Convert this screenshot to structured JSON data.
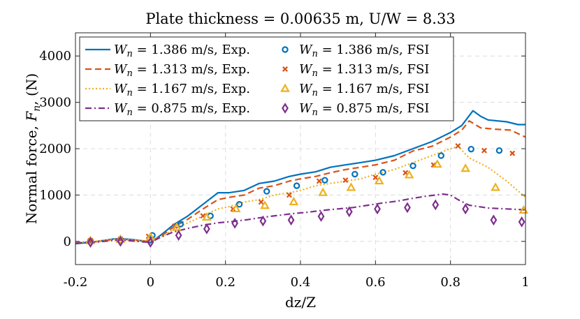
{
  "chart_data": {
    "type": "line",
    "title": "Plate thickness = 0.00635 m, U/W = 8.33",
    "xlabel": "dz/Z",
    "ylabel_prefix": "Normal force, ",
    "ylabel_symbol": "F",
    "ylabel_sub": "n",
    "ylabel_suffix": ", (N)",
    "xlim": [
      -0.2,
      1.0
    ],
    "ylim": [
      -500,
      4500
    ],
    "xticks": [
      -0.2,
      0,
      0.2,
      0.4,
      0.6,
      0.8,
      1
    ],
    "xtick_labels": [
      "-0.2",
      "0",
      "0.2",
      "0.4",
      "0.6",
      "0.8",
      "1"
    ],
    "yticks": [
      0,
      1000,
      2000,
      3000,
      4000
    ],
    "ytick_labels": [
      "0",
      "1000",
      "2000",
      "3000",
      "4000"
    ],
    "grid": true,
    "legend_placement": "top-left",
    "legend_symbol": "W",
    "legend_sub": "n",
    "series": [
      {
        "name_value": " = 1.386 m/s, Exp.",
        "kind": "line",
        "dash": "solid",
        "color": "#0072BD",
        "x": [
          -0.2,
          -0.15,
          -0.1,
          -0.08,
          -0.05,
          -0.02,
          0,
          0.03,
          0.06,
          0.1,
          0.14,
          0.18,
          0.21,
          0.25,
          0.29,
          0.33,
          0.37,
          0.4,
          0.44,
          0.48,
          0.52,
          0.56,
          0.6,
          0.65,
          0.7,
          0.75,
          0.8,
          0.83,
          0.86,
          0.88,
          0.9,
          0.95,
          0.98,
          1.0
        ],
        "y": [
          -50,
          -10,
          50,
          60,
          40,
          10,
          -30,
          150,
          350,
          550,
          800,
          1050,
          1050,
          1100,
          1250,
          1300,
          1400,
          1450,
          1500,
          1600,
          1650,
          1700,
          1750,
          1850,
          2000,
          2150,
          2350,
          2500,
          2820,
          2700,
          2620,
          2580,
          2520,
          2520
        ]
      },
      {
        "name_value": " = 1.313 m/s, Exp.",
        "kind": "line",
        "dash": "dashed",
        "color": "#D95319",
        "x": [
          -0.2,
          -0.15,
          -0.1,
          -0.08,
          -0.05,
          -0.02,
          0,
          0.03,
          0.06,
          0.1,
          0.14,
          0.18,
          0.21,
          0.25,
          0.29,
          0.33,
          0.37,
          0.4,
          0.44,
          0.48,
          0.52,
          0.56,
          0.6,
          0.65,
          0.7,
          0.75,
          0.8,
          0.83,
          0.85,
          0.88,
          0.92,
          0.96,
          1.0
        ],
        "y": [
          -30,
          -10,
          40,
          50,
          30,
          10,
          0,
          120,
          300,
          480,
          700,
          900,
          950,
          1000,
          1150,
          1200,
          1300,
          1350,
          1400,
          1480,
          1550,
          1600,
          1650,
          1750,
          1950,
          2050,
          2250,
          2400,
          2600,
          2450,
          2420,
          2400,
          2250
        ]
      },
      {
        "name_value": " = 1.167 m/s, Exp.",
        "kind": "line",
        "dash": "dotted",
        "color": "#EDB120",
        "x": [
          -0.2,
          -0.15,
          -0.1,
          -0.08,
          -0.05,
          -0.02,
          0,
          0.03,
          0.06,
          0.1,
          0.14,
          0.18,
          0.21,
          0.25,
          0.29,
          0.33,
          0.37,
          0.4,
          0.44,
          0.48,
          0.52,
          0.56,
          0.6,
          0.65,
          0.7,
          0.75,
          0.8,
          0.82,
          0.85,
          0.9,
          0.95,
          1.0
        ],
        "y": [
          -20,
          0,
          40,
          50,
          30,
          10,
          0,
          100,
          250,
          400,
          550,
          700,
          750,
          850,
          900,
          1000,
          1050,
          1100,
          1200,
          1250,
          1300,
          1350,
          1450,
          1550,
          1700,
          1850,
          2000,
          2050,
          1800,
          1600,
          1300,
          950
        ]
      },
      {
        "name_value": " = 0.875 m/s, Exp.",
        "kind": "line",
        "dash": "dashdot",
        "color": "#7E2F8E",
        "x": [
          -0.2,
          -0.15,
          -0.1,
          -0.08,
          -0.05,
          -0.02,
          0,
          0.03,
          0.06,
          0.1,
          0.14,
          0.18,
          0.22,
          0.26,
          0.3,
          0.34,
          0.38,
          0.42,
          0.46,
          0.5,
          0.54,
          0.58,
          0.62,
          0.66,
          0.7,
          0.74,
          0.78,
          0.8,
          0.82,
          0.85,
          0.9,
          0.95,
          1.0
        ],
        "y": [
          -40,
          -20,
          20,
          30,
          10,
          -10,
          -20,
          100,
          200,
          280,
          350,
          400,
          430,
          470,
          520,
          560,
          600,
          630,
          670,
          700,
          730,
          780,
          830,
          870,
          930,
          980,
          1020,
          1000,
          900,
          780,
          720,
          700,
          680
        ]
      },
      {
        "name_value": " = 1.386 m/s, FSI",
        "kind": "marker",
        "marker": "circle",
        "color": "#0072BD",
        "x": [
          -0.16,
          -0.08,
          0.005,
          0.08,
          0.16,
          0.237,
          0.31,
          0.39,
          0.465,
          0.545,
          0.62,
          0.7,
          0.775,
          0.855,
          0.93
        ],
        "y": [
          10,
          30,
          130,
          370,
          550,
          800,
          1080,
          1200,
          1320,
          1450,
          1490,
          1630,
          1850,
          1990,
          1960
        ]
      },
      {
        "name_value": " = 1.313 m/s, FSI",
        "kind": "marker",
        "marker": "cross",
        "color": "#D95319",
        "x": [
          -0.16,
          -0.08,
          -0.005,
          0.065,
          0.14,
          0.22,
          0.295,
          0.37,
          0.45,
          0.52,
          0.6,
          0.68,
          0.755,
          0.82,
          0.89,
          0.965
        ],
        "y": [
          20,
          50,
          110,
          330,
          550,
          700,
          850,
          1000,
          1300,
          1320,
          1380,
          1480,
          1650,
          2060,
          1960,
          1900
        ]
      },
      {
        "name_value": " = 1.167 m/s, FSI",
        "kind": "marker",
        "marker": "triangle",
        "color": "#EDB120",
        "x": [
          -0.16,
          -0.08,
          0.0,
          0.07,
          0.15,
          0.228,
          0.305,
          0.382,
          0.46,
          0.535,
          0.61,
          0.69,
          0.765,
          0.84,
          0.92,
          0.995
        ],
        "y": [
          10,
          40,
          90,
          300,
          520,
          700,
          770,
          850,
          1050,
          1160,
          1300,
          1430,
          1660,
          1570,
          1160,
          670
        ]
      },
      {
        "name_value": " = 0.875 m/s, FSI",
        "kind": "marker",
        "marker": "diamond",
        "color": "#7E2F8E",
        "x": [
          -0.16,
          -0.08,
          0.0,
          0.075,
          0.15,
          0.225,
          0.3,
          0.375,
          0.455,
          0.53,
          0.605,
          0.685,
          0.76,
          0.84,
          0.915,
          0.99
        ],
        "y": [
          -20,
          0,
          -20,
          130,
          270,
          390,
          440,
          460,
          540,
          640,
          700,
          730,
          790,
          700,
          460,
          420
        ]
      }
    ]
  }
}
